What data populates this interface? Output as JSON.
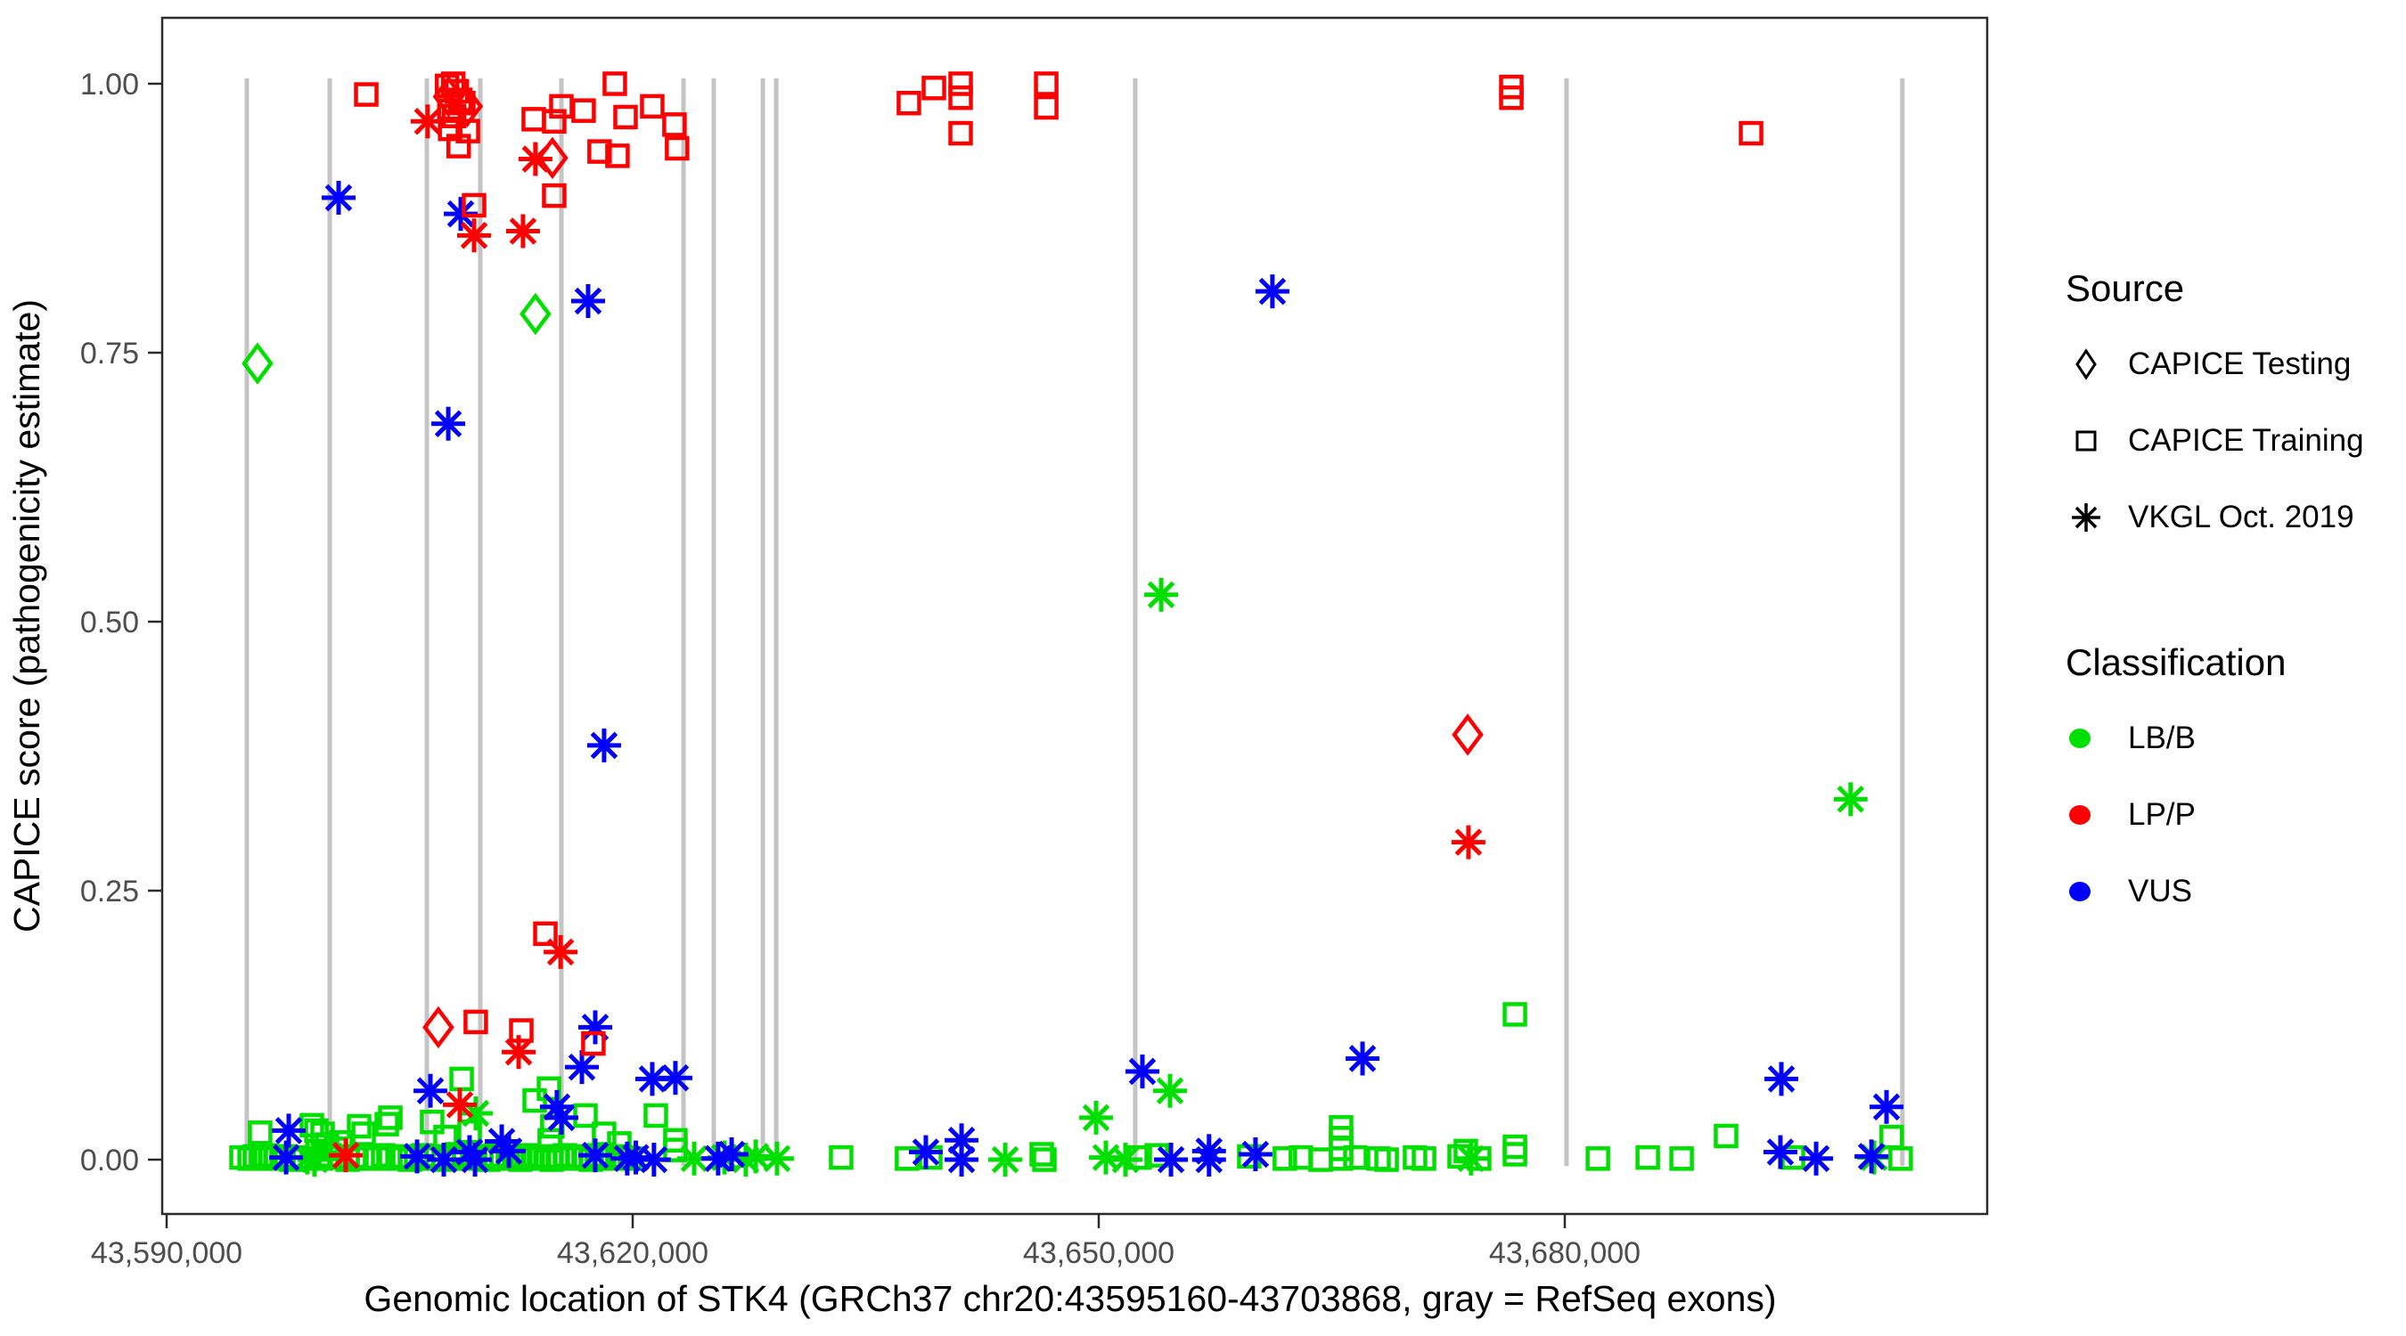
{
  "legend": {
    "source_title": "Source",
    "source_items": [
      {
        "label": "CAPICE Testing",
        "marker": "diamond-outline-icon"
      },
      {
        "label": "CAPICE Training",
        "marker": "square-outline-icon"
      },
      {
        "label": "VKGL Oct. 2019",
        "marker": "asterisk-icon"
      }
    ],
    "classification_title": "Classification",
    "classification_items": [
      {
        "label": "LB/B",
        "color": "#00E000"
      },
      {
        "label": "LP/P",
        "color": "#FF0000"
      },
      {
        "label": "VUS",
        "color": "#0000FF"
      }
    ]
  },
  "chart_data": {
    "type": "scatter",
    "title": "",
    "x_axis": {
      "title": "Genomic location of STK4 (GRCh37 chr20:43595160-43703868, gray = RefSeq exons)",
      "tick_values": [
        43590000,
        43620000,
        43650000,
        43680000
      ],
      "tick_labels": [
        "43,590,000",
        "43,620,000",
        "43,650,000",
        "43,680,000"
      ],
      "range": [
        43589700,
        43707200
      ]
    },
    "y_axis": {
      "title": "CAPICE score (pathogenicity estimate)",
      "tick_values": [
        0.0,
        0.25,
        0.5,
        0.75,
        1.0
      ],
      "tick_labels": [
        "0.00",
        "0.25",
        "0.50",
        "0.75",
        "1.00"
      ],
      "range": [
        -0.05,
        1.06
      ]
    },
    "grid": "off",
    "legend_position": "right",
    "refseq_exon_color": "#C4C4C4",
    "refseq_exon_positions": [
      43595160,
      43600500,
      43606750,
      43610190,
      43615410,
      43623270,
      43625220,
      43628380,
      43629240,
      43652350,
      43680110,
      43701730
    ],
    "point_format": "[genomic_position, capice_score]",
    "series": [
      {
        "classification": "LB/B",
        "source": "CAPICE Training",
        "marker": "square",
        "color": "#00E000",
        "points": [
          [
            43676790,
            0.135
          ],
          [
            43608990,
            0.075
          ],
          [
            43614610,
            0.066
          ],
          [
            43613690,
            0.055
          ],
          [
            43596020,
            0.025
          ],
          [
            43599640,
            0.027
          ],
          [
            43604170,
            0.033
          ],
          [
            43599350,
            0.032
          ],
          [
            43600040,
            0.024
          ],
          [
            43600320,
            0.014
          ],
          [
            43600900,
            0.01
          ],
          [
            43601240,
            0.016
          ],
          [
            43602390,
            0.031
          ],
          [
            43602680,
            0.024
          ],
          [
            43604400,
            0.039
          ],
          [
            43607090,
            0.035
          ],
          [
            43607950,
            0.021
          ],
          [
            43609500,
            0.026
          ],
          [
            43614660,
            0.018
          ],
          [
            43614830,
            0.031
          ],
          [
            43616960,
            0.041
          ],
          [
            43618160,
            0.024
          ],
          [
            43621490,
            0.041
          ],
          [
            43622750,
            0.018
          ],
          [
            43622750,
            0.009
          ],
          [
            43619140,
            0.015
          ],
          [
            43690380,
            0.022
          ],
          [
            43701040,
            0.021
          ],
          [
            43676790,
            0.012
          ],
          [
            43676790,
            0.005
          ],
          [
            43594820,
            0.002
          ],
          [
            43595340,
            0.001
          ],
          [
            43595680,
            0.003
          ],
          [
            43596080,
            0.001
          ],
          [
            43596370,
            0.004
          ],
          [
            43596710,
            0.002
          ],
          [
            43597060,
            0.001
          ],
          [
            43597520,
            0.003
          ],
          [
            43598030,
            0.0
          ],
          [
            43598320,
            0.002
          ],
          [
            43599920,
            0.001
          ],
          [
            43600500,
            0.004
          ],
          [
            43601130,
            0.002
          ],
          [
            43601650,
            0.0
          ],
          [
            43602100,
            0.003
          ],
          [
            43602960,
            0.001
          ],
          [
            43603540,
            0.002
          ],
          [
            43603940,
            0.004
          ],
          [
            43604400,
            0.001
          ],
          [
            43605090,
            0.003
          ],
          [
            43605660,
            0.0
          ],
          [
            43606060,
            0.002
          ],
          [
            43606520,
            0.004
          ],
          [
            43606980,
            0.001
          ],
          [
            43607380,
            0.003
          ],
          [
            43607840,
            0.0
          ],
          [
            43608360,
            0.002
          ],
          [
            43608700,
            0.005
          ],
          [
            43609160,
            0.001
          ],
          [
            43609680,
            0.003
          ],
          [
            43610250,
            0.002
          ],
          [
            43610710,
            0.0
          ],
          [
            43611170,
            0.004
          ],
          [
            43611570,
            0.001
          ],
          [
            43611970,
            0.003
          ],
          [
            43612370,
            0.002
          ],
          [
            43612770,
            0.0
          ],
          [
            43613170,
            0.004
          ],
          [
            43613570,
            0.001
          ],
          [
            43613970,
            0.002
          ],
          [
            43614380,
            0.003
          ],
          [
            43614780,
            0.0
          ],
          [
            43615180,
            0.002
          ],
          [
            43615640,
            0.004
          ],
          [
            43616040,
            0.001
          ],
          [
            43616440,
            0.003
          ],
          [
            43616840,
            0.002
          ],
          [
            43617300,
            0.0
          ],
          [
            43617700,
            0.004
          ],
          [
            43618160,
            0.001
          ],
          [
            43618680,
            0.003
          ],
          [
            43619250,
            0.002
          ],
          [
            43619830,
            0.001
          ],
          [
            43633420,
            0.002
          ],
          [
            43637660,
            0.001
          ],
          [
            43639160,
            0.002
          ],
          [
            43646330,
            0.005
          ],
          [
            43646500,
            0.0
          ],
          [
            43652640,
            0.002
          ],
          [
            43653730,
            0.004
          ],
          [
            43659690,
            0.003
          ],
          [
            43661980,
            0.001
          ],
          [
            43663010,
            0.002
          ],
          [
            43664280,
            0.0
          ],
          [
            43665600,
            0.03
          ],
          [
            43665600,
            0.02
          ],
          [
            43665600,
            0.01
          ],
          [
            43665600,
            0.001
          ],
          [
            43666520,
            0.002
          ],
          [
            43668010,
            0.001
          ],
          [
            43668530,
            0.0
          ],
          [
            43670360,
            0.002
          ],
          [
            43670940,
            0.001
          ],
          [
            43673230,
            0.003
          ],
          [
            43673630,
            0.008
          ],
          [
            43674490,
            0.001
          ],
          [
            43682130,
            0.001
          ],
          [
            43685340,
            0.002
          ],
          [
            43687520,
            0.001
          ],
          [
            43694690,
            0.002
          ],
          [
            43701620,
            0.001
          ]
        ]
      },
      {
        "classification": "LB/B",
        "source": "VKGL Oct. 2019",
        "marker": "asterisk",
        "color": "#00E000",
        "points": [
          [
            43654020,
            0.525
          ],
          [
            43698400,
            0.335
          ],
          [
            43609900,
            0.043
          ],
          [
            43654590,
            0.064
          ],
          [
            43649830,
            0.039
          ],
          [
            43599060,
            0.002
          ],
          [
            43599520,
            0.0
          ],
          [
            43623960,
            0.001
          ],
          [
            43625910,
            0.002
          ],
          [
            43627280,
            0.0
          ],
          [
            43627920,
            0.003
          ],
          [
            43629290,
            0.001
          ],
          [
            43650460,
            0.002
          ],
          [
            43651720,
            0.0
          ],
          [
            43673970,
            0.001
          ],
          [
            43699910,
            0.002
          ],
          [
            43643980,
            0.0
          ]
        ]
      },
      {
        "classification": "LB/B",
        "source": "CAPICE Testing",
        "marker": "diamond",
        "color": "#00E000",
        "points": [
          [
            43595850,
            0.74
          ],
          [
            43613740,
            0.786
          ]
        ]
      },
      {
        "classification": "VUS",
        "source": "VKGL Oct. 2019",
        "marker": "asterisk",
        "color": "#0000FF",
        "points": [
          [
            43601070,
            0.894
          ],
          [
            43608930,
            0.879
          ],
          [
            43617130,
            0.798
          ],
          [
            43608130,
            0.684
          ],
          [
            43661180,
            0.807
          ],
          [
            43618160,
            0.385
          ],
          [
            43617590,
            0.123
          ],
          [
            43616730,
            0.086
          ],
          [
            43615120,
            0.049
          ],
          [
            43615410,
            0.039
          ],
          [
            43606980,
            0.064
          ],
          [
            43597860,
            0.027
          ],
          [
            43597690,
            0.002
          ],
          [
            43611570,
            0.017
          ],
          [
            43606120,
            0.003
          ],
          [
            43607840,
            0.0
          ],
          [
            43609500,
            0.007
          ],
          [
            43612030,
            0.008
          ],
          [
            43621260,
            0.075
          ],
          [
            43622750,
            0.076
          ],
          [
            43619650,
            0.001
          ],
          [
            43621370,
            0.0
          ],
          [
            43625500,
            0.001
          ],
          [
            43626370,
            0.005
          ],
          [
            43641170,
            0.018
          ],
          [
            43641170,
            0.0
          ],
          [
            43638870,
            0.007
          ],
          [
            43652810,
            0.082
          ],
          [
            43654650,
            0.0
          ],
          [
            43657100,
            0.008
          ],
          [
            43657100,
            0.0
          ],
          [
            43660090,
            0.005
          ],
          [
            43666980,
            0.094
          ],
          [
            43693940,
            0.075
          ],
          [
            43700710,
            0.049
          ],
          [
            43693880,
            0.007
          ],
          [
            43696180,
            0.001
          ],
          [
            43617590,
            0.004
          ],
          [
            43609850,
            0.0
          ],
          [
            43620200,
            0.002
          ],
          [
            43699740,
            0.003
          ]
        ]
      },
      {
        "classification": "LP/P",
        "source": "CAPICE Training",
        "marker": "square",
        "color": "#FF0000",
        "points": [
          [
            43602850,
            0.99
          ],
          [
            43608050,
            0.998
          ],
          [
            43608450,
            1.0
          ],
          [
            43608680,
            0.993
          ],
          [
            43608900,
            0.985
          ],
          [
            43608200,
            0.975
          ],
          [
            43608500,
            0.97
          ],
          [
            43609100,
            0.982
          ],
          [
            43609390,
            0.956
          ],
          [
            43608250,
            0.958
          ],
          [
            43608800,
            0.942
          ],
          [
            43613630,
            0.967
          ],
          [
            43614950,
            0.965
          ],
          [
            43615410,
            0.979
          ],
          [
            43616840,
            0.975
          ],
          [
            43617870,
            0.937
          ],
          [
            43619020,
            0.933
          ],
          [
            43614950,
            0.896
          ],
          [
            43609790,
            0.887
          ],
          [
            43618850,
            1.0
          ],
          [
            43619540,
            0.969
          ],
          [
            43621260,
            0.979
          ],
          [
            43622690,
            0.962
          ],
          [
            43622860,
            0.94
          ],
          [
            43637780,
            0.982
          ],
          [
            43639390,
            0.996
          ],
          [
            43641110,
            1.0
          ],
          [
            43641110,
            0.987
          ],
          [
            43641110,
            0.954
          ],
          [
            43646620,
            1.0
          ],
          [
            43646620,
            0.978
          ],
          [
            43676560,
            0.997
          ],
          [
            43676560,
            0.987
          ],
          [
            43691990,
            0.954
          ],
          [
            43614380,
            0.21
          ],
          [
            43609900,
            0.128
          ],
          [
            43612830,
            0.12
          ],
          [
            43617470,
            0.108
          ]
        ]
      },
      {
        "classification": "LP/P",
        "source": "VKGL Oct. 2019",
        "marker": "asterisk",
        "color": "#FF0000",
        "points": [
          [
            43606800,
            0.965
          ],
          [
            43613740,
            0.93
          ],
          [
            43609790,
            0.859
          ],
          [
            43612940,
            0.863
          ],
          [
            43615360,
            0.193
          ],
          [
            43612660,
            0.1
          ],
          [
            43608870,
            0.051
          ],
          [
            43601530,
            0.004
          ],
          [
            43673800,
            0.295
          ]
        ]
      },
      {
        "classification": "LP/P",
        "source": "CAPICE Testing",
        "marker": "diamond",
        "color": "#FF0000",
        "points": [
          [
            43608150,
            0.988
          ],
          [
            43609350,
            0.979
          ],
          [
            43614830,
            0.931
          ],
          [
            43607490,
            0.123
          ],
          [
            43673750,
            0.395
          ]
        ]
      }
    ]
  }
}
